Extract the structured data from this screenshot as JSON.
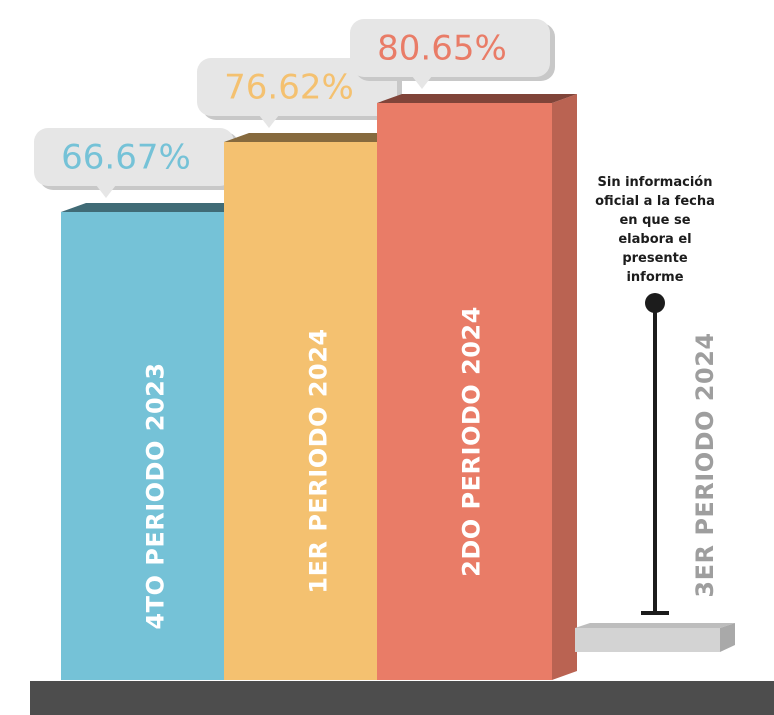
{
  "chart_data": {
    "type": "bar",
    "categories": [
      "4TO PERIODO 2023",
      "1ER PERIODO 2024",
      "2DO PERIODO 2024",
      "3ER PERIODO 2024"
    ],
    "values": [
      66.67,
      76.62,
      80.65,
      null
    ],
    "value_labels": [
      "66.67%",
      "76.62%",
      "80.65%",
      ""
    ],
    "colors": [
      "#75C2D7",
      "#F4C170",
      "#E97C67",
      "#C9C9C9"
    ],
    "annotation": {
      "category": "3ER PERIODO 2024",
      "lines": [
        "Sin información",
        "oficial a la fecha",
        "en que se",
        "elabora el",
        "presente",
        "informe"
      ]
    },
    "xlabel": "",
    "ylabel": "",
    "grid": false,
    "legend": "none"
  }
}
